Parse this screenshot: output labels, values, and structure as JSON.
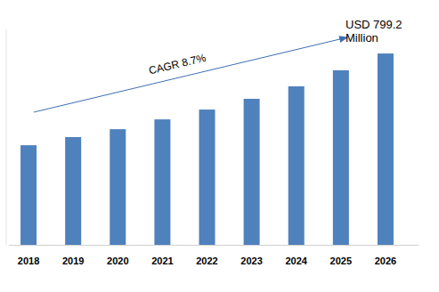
{
  "chart_data": {
    "type": "bar",
    "categories": [
      "2018",
      "2019",
      "2020",
      "2021",
      "2022",
      "2023",
      "2024",
      "2025",
      "2026"
    ],
    "values": [
      416,
      450,
      483,
      524,
      565,
      610,
      662,
      729,
      799.2
    ],
    "color": "#4f81bd",
    "ylim": [
      0,
      900
    ],
    "tick_labels": "x",
    "grid": false,
    "annotations": [
      "CAGR 8.7%",
      "USD 799.2 Million"
    ]
  }
}
